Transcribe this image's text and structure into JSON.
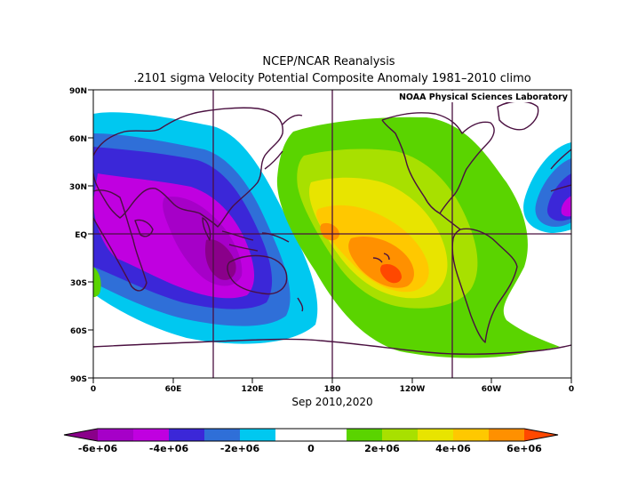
{
  "header": {
    "title_line1": "NCEP/NCAR Reanalysis",
    "title_line2": ".2101 sigma Velocity Potential  Composite Anomaly 1981–2010 climo"
  },
  "map": {
    "credit": "NOAA Physical Sciences Laboratory",
    "date_label": "Sep 2010,2020",
    "lat_ticks": [
      "90N",
      "60N",
      "30N",
      "EQ",
      "30S",
      "60S",
      "90S"
    ],
    "lon_ticks": [
      "0",
      "60E",
      "120E",
      "180",
      "120W",
      "60W",
      "0"
    ],
    "colors": {
      "land_outline": "#4a1040",
      "grid_lines": "#4a1040"
    }
  },
  "colorbar": {
    "tick_labels": [
      "-6e+06",
      "-4e+06",
      "-2e+06",
      "0",
      "2e+06",
      "4e+06",
      "6e+06"
    ],
    "bins": [
      {
        "value": -6000000.0,
        "color": "#8a008a"
      },
      {
        "value": -5000000.0,
        "color": "#a600c8"
      },
      {
        "value": -4000000.0,
        "color": "#c000e0"
      },
      {
        "value": -3000000.0,
        "color": "#3b27d8"
      },
      {
        "value": -2000000.0,
        "color": "#2f6fd8"
      },
      {
        "value": -1000000.0,
        "color": "#00c8f0"
      },
      {
        "value": 0,
        "color": "#ffffff"
      },
      {
        "value": 0,
        "color": "#ffffff"
      },
      {
        "value": 1000000.0,
        "color": "#5ad400"
      },
      {
        "value": 2000000.0,
        "color": "#a8e000"
      },
      {
        "value": 3000000.0,
        "color": "#e8e400"
      },
      {
        "value": 4000000.0,
        "color": "#ffc800"
      },
      {
        "value": 5000000.0,
        "color": "#ff9000"
      },
      {
        "value": 6000000.0,
        "color": "#ff4800"
      }
    ]
  }
}
